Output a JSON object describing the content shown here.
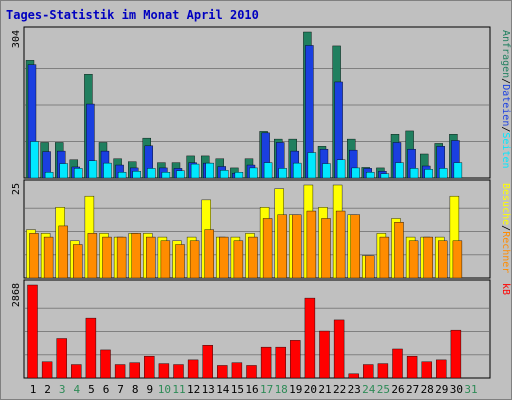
{
  "chart_data": {
    "type": "bar",
    "title": "Tages-Statistik im Monat April 2010",
    "colors": {
      "background": "#C0C0C0",
      "frame": "#000000",
      "grid": "#808080",
      "title": "#0000C0",
      "weekday_label": "#000000",
      "weekend_label": "#2E8B57",
      "anfragen": "#207F5F",
      "dateien": "#1A3FE0",
      "seiten": "#00E8FF",
      "besuche": "#FFFF00",
      "rechner": "#FF8C00",
      "kb": "#FF0000"
    },
    "categories": [
      "1",
      "2",
      "3",
      "4",
      "5",
      "6",
      "7",
      "8",
      "9",
      "10",
      "11",
      "12",
      "13",
      "14",
      "15",
      "16",
      "17",
      "18",
      "19",
      "20",
      "21",
      "22",
      "23",
      "24",
      "25",
      "26",
      "27",
      "28",
      "29",
      "30",
      "31"
    ],
    "weekend_days": [
      "3",
      "4",
      "10",
      "11",
      "17",
      "18",
      "24",
      "25",
      "31"
    ],
    "grid": true,
    "panels": [
      {
        "key": "hits",
        "ymax_label": "304",
        "ylim": [
          0,
          304
        ],
        "right_labels": [
          {
            "text": "Anfragen",
            "color": "#207F5F"
          },
          {
            "text": "/",
            "color": "#000000"
          },
          {
            "text": "Dateien",
            "color": "#1A3FE0"
          },
          {
            "text": "/",
            "color": "#000000"
          },
          {
            "text": "Seiten",
            "color": "#00E8FF"
          }
        ],
        "series": [
          {
            "name": "Anfragen",
            "color": "#207F5F",
            "values": [
              245,
              74,
              74,
              38,
              216,
              74,
              40,
              34,
              83,
              32,
              32,
              46,
              46,
              40,
              21,
              40,
              97,
              81,
              81,
              304,
              66,
              275,
              81,
              22,
              21,
              91,
              98,
              50,
              72,
              91,
              null
            ]
          },
          {
            "name": "Dateien",
            "color": "#1A3FE0",
            "values": [
              236,
              55,
              56,
              23,
              154,
              56,
              27,
              21,
              67,
              21,
              20,
              32,
              31,
              24,
              10,
              27,
              94,
              74,
              56,
              276,
              60,
              200,
              58,
              20,
              14,
              74,
              60,
              25,
              66,
              78,
              null
            ]
          },
          {
            "name": "Seiten",
            "color": "#00E8FF",
            "values": [
              76,
              12,
              30,
              20,
              36,
              31,
              12,
              14,
              20,
              12,
              15,
              29,
              31,
              16,
              12,
              21,
              32,
              20,
              31,
              53,
              30,
              38,
              21,
              12,
              9,
              32,
              20,
              18,
              20,
              32,
              null
            ]
          }
        ]
      },
      {
        "key": "visits",
        "ymax_label": "25",
        "ylim": [
          0,
          25
        ],
        "right_labels": [
          {
            "text": "Besuche",
            "color": "#FFFF00"
          },
          {
            "text": "/",
            "color": "#000000"
          },
          {
            "text": "Rechner",
            "color": "#FF8C00"
          }
        ],
        "series": [
          {
            "name": "Besuche",
            "color": "#FFFF00",
            "values": [
              13,
              12,
              19,
              10,
              22,
              12,
              11,
              12,
              12,
              11,
              10,
              11,
              21,
              11,
              11,
              12,
              19,
              24,
              17,
              25,
              19,
              25,
              17,
              6,
              12,
              16,
              11,
              11,
              11,
              22,
              null
            ]
          },
          {
            "name": "Rechner",
            "color": "#FF8C00",
            "values": [
              12,
              11,
              14,
              9,
              12,
              11,
              11,
              12,
              11,
              10,
              9,
              10,
              13,
              11,
              10,
              11,
              16,
              17,
              17,
              18,
              16,
              18,
              17,
              6,
              11,
              15,
              10,
              11,
              10,
              10,
              null
            ]
          }
        ]
      },
      {
        "key": "kb",
        "ymax_label": "2868",
        "ylim": [
          0,
          2868
        ],
        "right_labels": [
          {
            "text": "kB",
            "color": "#FF0000"
          }
        ],
        "series": [
          {
            "name": "kB",
            "color": "#FF0000",
            "values": [
              2868,
              501,
              1218,
              415,
              1847,
              866,
              415,
              473,
              673,
              444,
              415,
              559,
              1009,
              387,
              473,
              387,
              952,
              952,
              1161,
              2464,
              1448,
              1791,
              129,
              415,
              444,
              895,
              673,
              501,
              559,
              1476,
              null
            ]
          }
        ]
      }
    ]
  }
}
